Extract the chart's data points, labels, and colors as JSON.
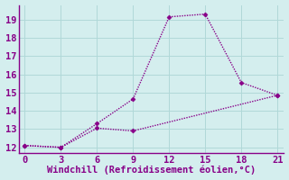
{
  "line1_x": [
    0,
    3,
    6,
    9,
    12,
    15,
    18,
    21
  ],
  "line1_y": [
    12.1,
    12.0,
    13.3,
    14.65,
    19.15,
    19.3,
    15.55,
    14.85
  ],
  "line2_x": [
    0,
    3,
    6,
    9,
    21
  ],
  "line2_y": [
    12.1,
    12.0,
    13.05,
    12.9,
    14.85
  ],
  "line_color": "#880088",
  "background_color": "#d4eeee",
  "grid_color": "#b0d8d8",
  "spine_color": "#880088",
  "xlabel": "Windchill (Refroidissement éolien,°C)",
  "xlabel_color": "#880088",
  "tick_color": "#880088",
  "xlim": [
    -0.5,
    21.5
  ],
  "ylim": [
    11.7,
    19.8
  ],
  "xticks": [
    0,
    3,
    6,
    9,
    12,
    15,
    18,
    21
  ],
  "yticks": [
    12,
    13,
    14,
    15,
    16,
    17,
    18,
    19
  ],
  "marker": "D",
  "marker_size": 2.5,
  "line_width": 1.0,
  "font_size": 7.5,
  "xlabel_fontsize": 7.5
}
